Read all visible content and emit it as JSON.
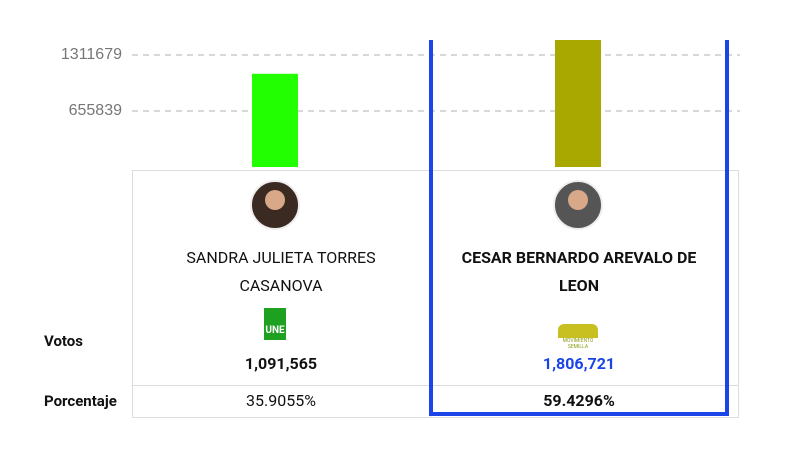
{
  "chart_data": {
    "type": "bar",
    "categories": [
      "SANDRA JULIETA TORRES CASANOVA",
      "CESAR BERNARDO AREVALO DE LEON"
    ],
    "values": [
      1091565,
      1806721
    ],
    "value_labels": [
      "1,091,565",
      "1,806,721"
    ],
    "colors": [
      "#22ff00",
      "#a8a800"
    ],
    "ylim": [
      0,
      1487000
    ],
    "yticks": [
      655839,
      1311679
    ],
    "grid": true,
    "highlight_color": "#1a44e8"
  },
  "table": {
    "row_labels": [
      "Votos",
      "Porcentaje"
    ],
    "parties": [
      "UNE",
      "MOVIMIENTO SEMILLA"
    ],
    "percentages": [
      35.9055,
      59.4296
    ],
    "percentage_labels": [
      "35.9055%",
      "59.4296%"
    ]
  }
}
